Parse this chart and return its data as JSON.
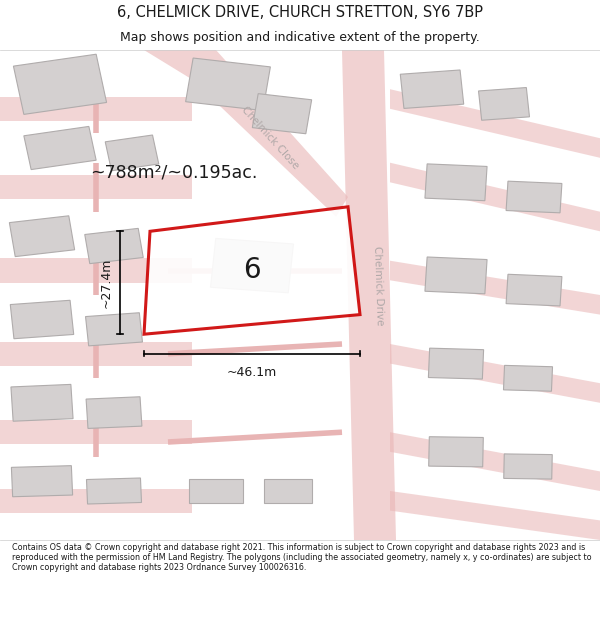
{
  "title": "6, CHELMICK DRIVE, CHURCH STRETTON, SY6 7BP",
  "subtitle": "Map shows position and indicative extent of the property.",
  "footer": "Contains OS data © Crown copyright and database right 2021. This information is subject to Crown copyright and database rights 2023 and is reproduced with the permission of HM Land Registry. The polygons (including the associated geometry, namely x, y co-ordinates) are subject to Crown copyright and database rights 2023 Ordnance Survey 100026316.",
  "background_color": "#ffffff",
  "map_bg": "#f2eeee",
  "road_color": "#e8b4b4",
  "building_color": "#d4d0d0",
  "building_edge": "#b0acac",
  "highlight_color": "#cc0000",
  "highlight_fill": "#ffffff",
  "text_color": "#1a1a1a",
  "area_label": "~788m²/~0.195ac.",
  "width_label": "~46.1m",
  "height_label": "~27.4m",
  "plot_number": "6",
  "street_label_1": "Chelmick Close",
  "street_label_2": "Chelmick Drive"
}
